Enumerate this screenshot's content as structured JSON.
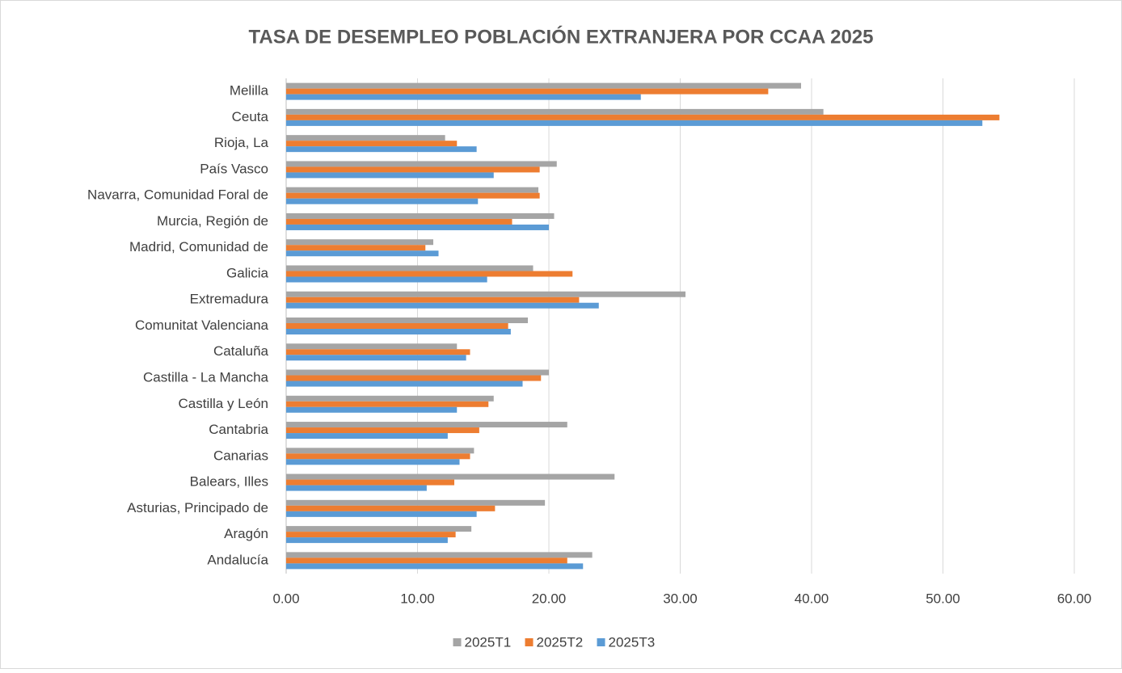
{
  "chart_data": {
    "type": "hbar",
    "title": "TASA DE DESEMPLEO POBLACIÓN EXTRANJERA POR CCAA 2025",
    "categories": [
      "Andalucía",
      "Aragón",
      "Asturias, Principado de",
      "Balears, Illes",
      "Canarias",
      "Cantabria",
      "Castilla y León",
      "Castilla - La Mancha",
      "Cataluña",
      "Comunitat Valenciana",
      "Extremadura",
      "Galicia",
      "Madrid, Comunidad de",
      "Murcia, Región de",
      "Navarra, Comunidad Foral de",
      "País Vasco",
      "Rioja, La",
      "Ceuta",
      "Melilla"
    ],
    "series": [
      {
        "name": "2025T1",
        "color": "#a5a5a5",
        "values": [
          23.3,
          14.1,
          19.7,
          25.0,
          14.3,
          21.4,
          15.8,
          20.0,
          13.0,
          18.4,
          30.4,
          18.8,
          11.2,
          20.4,
          19.2,
          20.6,
          12.1,
          40.9,
          39.2
        ]
      },
      {
        "name": "2025T2",
        "color": "#ed7d31",
        "values": [
          21.4,
          12.9,
          15.9,
          12.8,
          14.0,
          14.7,
          15.4,
          19.4,
          14.0,
          16.9,
          22.3,
          21.8,
          10.6,
          17.2,
          19.3,
          19.3,
          13.0,
          54.3,
          36.7
        ]
      },
      {
        "name": "2025T3",
        "color": "#5b9bd5",
        "values": [
          22.6,
          12.3,
          14.5,
          10.7,
          13.2,
          12.3,
          13.0,
          18.0,
          13.7,
          17.1,
          23.8,
          15.3,
          11.6,
          20.0,
          14.6,
          15.8,
          14.5,
          53.0,
          27.0
        ]
      }
    ],
    "xlim": [
      0,
      60
    ],
    "xticks": [
      {
        "value": 0,
        "label": "0.00"
      },
      {
        "value": 10,
        "label": "10.00"
      },
      {
        "value": 20,
        "label": "20.00"
      },
      {
        "value": 30,
        "label": "30.00"
      },
      {
        "value": 40,
        "label": "40.00"
      },
      {
        "value": 50,
        "label": "50.00"
      },
      {
        "value": 60,
        "label": "60.00"
      }
    ],
    "grid": true,
    "legend": "bottom"
  }
}
